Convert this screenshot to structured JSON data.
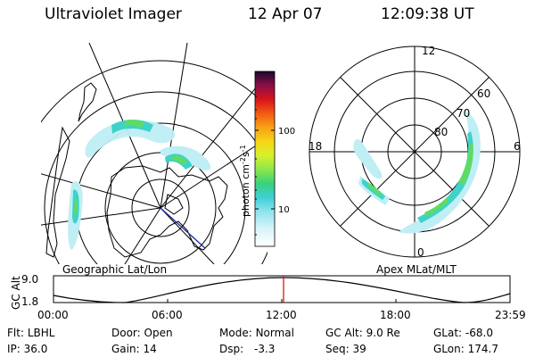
{
  "header": {
    "title": "Ultraviolet Imager",
    "date": "12 Apr 07",
    "time": "12:09:38 UT"
  },
  "geo_panel": {
    "label": "Geographic Lat/Lon"
  },
  "apex_panel": {
    "label": "Apex MLat/MLT",
    "mlt_labels": {
      "top": "12",
      "left": "18",
      "right": "6",
      "bottom": "0"
    },
    "lat_labels": [
      "60",
      "70",
      "80"
    ]
  },
  "colorbar": {
    "unit_main": "photon cm",
    "unit_exp1": "-2",
    "unit_mid": "s",
    "unit_exp2": "-1",
    "tick_high": "100",
    "tick_low": "10",
    "colors": [
      "#ffffff",
      "#e6f7fa",
      "#b9ecf4",
      "#7fdde8",
      "#3ccfd8",
      "#22c9b0",
      "#4bd66a",
      "#9ee84a",
      "#d8f02c",
      "#f7d516",
      "#f8a015",
      "#f15a12",
      "#d8141a",
      "#9a0e40",
      "#5a0a55",
      "#1a0a2a"
    ]
  },
  "timeline": {
    "y_axis_label": "GC Alt",
    "y_ticks": [
      "9.0",
      "1.8"
    ],
    "x_ticks": [
      "00:00",
      "06:00",
      "12:00",
      "18:00",
      "23:59"
    ],
    "current_marker_color": "#d81a0a"
  },
  "info": {
    "filter_label": "Flt:",
    "filter_value": "LBHL",
    "ip_label": "IP:",
    "ip_value": "36.0",
    "door_label": "Door:",
    "door_value": "Open",
    "gain_label": "Gain:",
    "gain_value": "14",
    "mode_label": "Mode:",
    "mode_value": "Normal",
    "dsp_label": "Dsp:",
    "dsp_value": "-3.3",
    "gcalt_label": "GC Alt:",
    "gcalt_value": "9.0 Re",
    "seq_label": "Seq:",
    "seq_value": "39",
    "glat_label": "GLat:",
    "glat_value": "-68.0",
    "glon_label": "GLon:",
    "glon_value": "174.7"
  }
}
